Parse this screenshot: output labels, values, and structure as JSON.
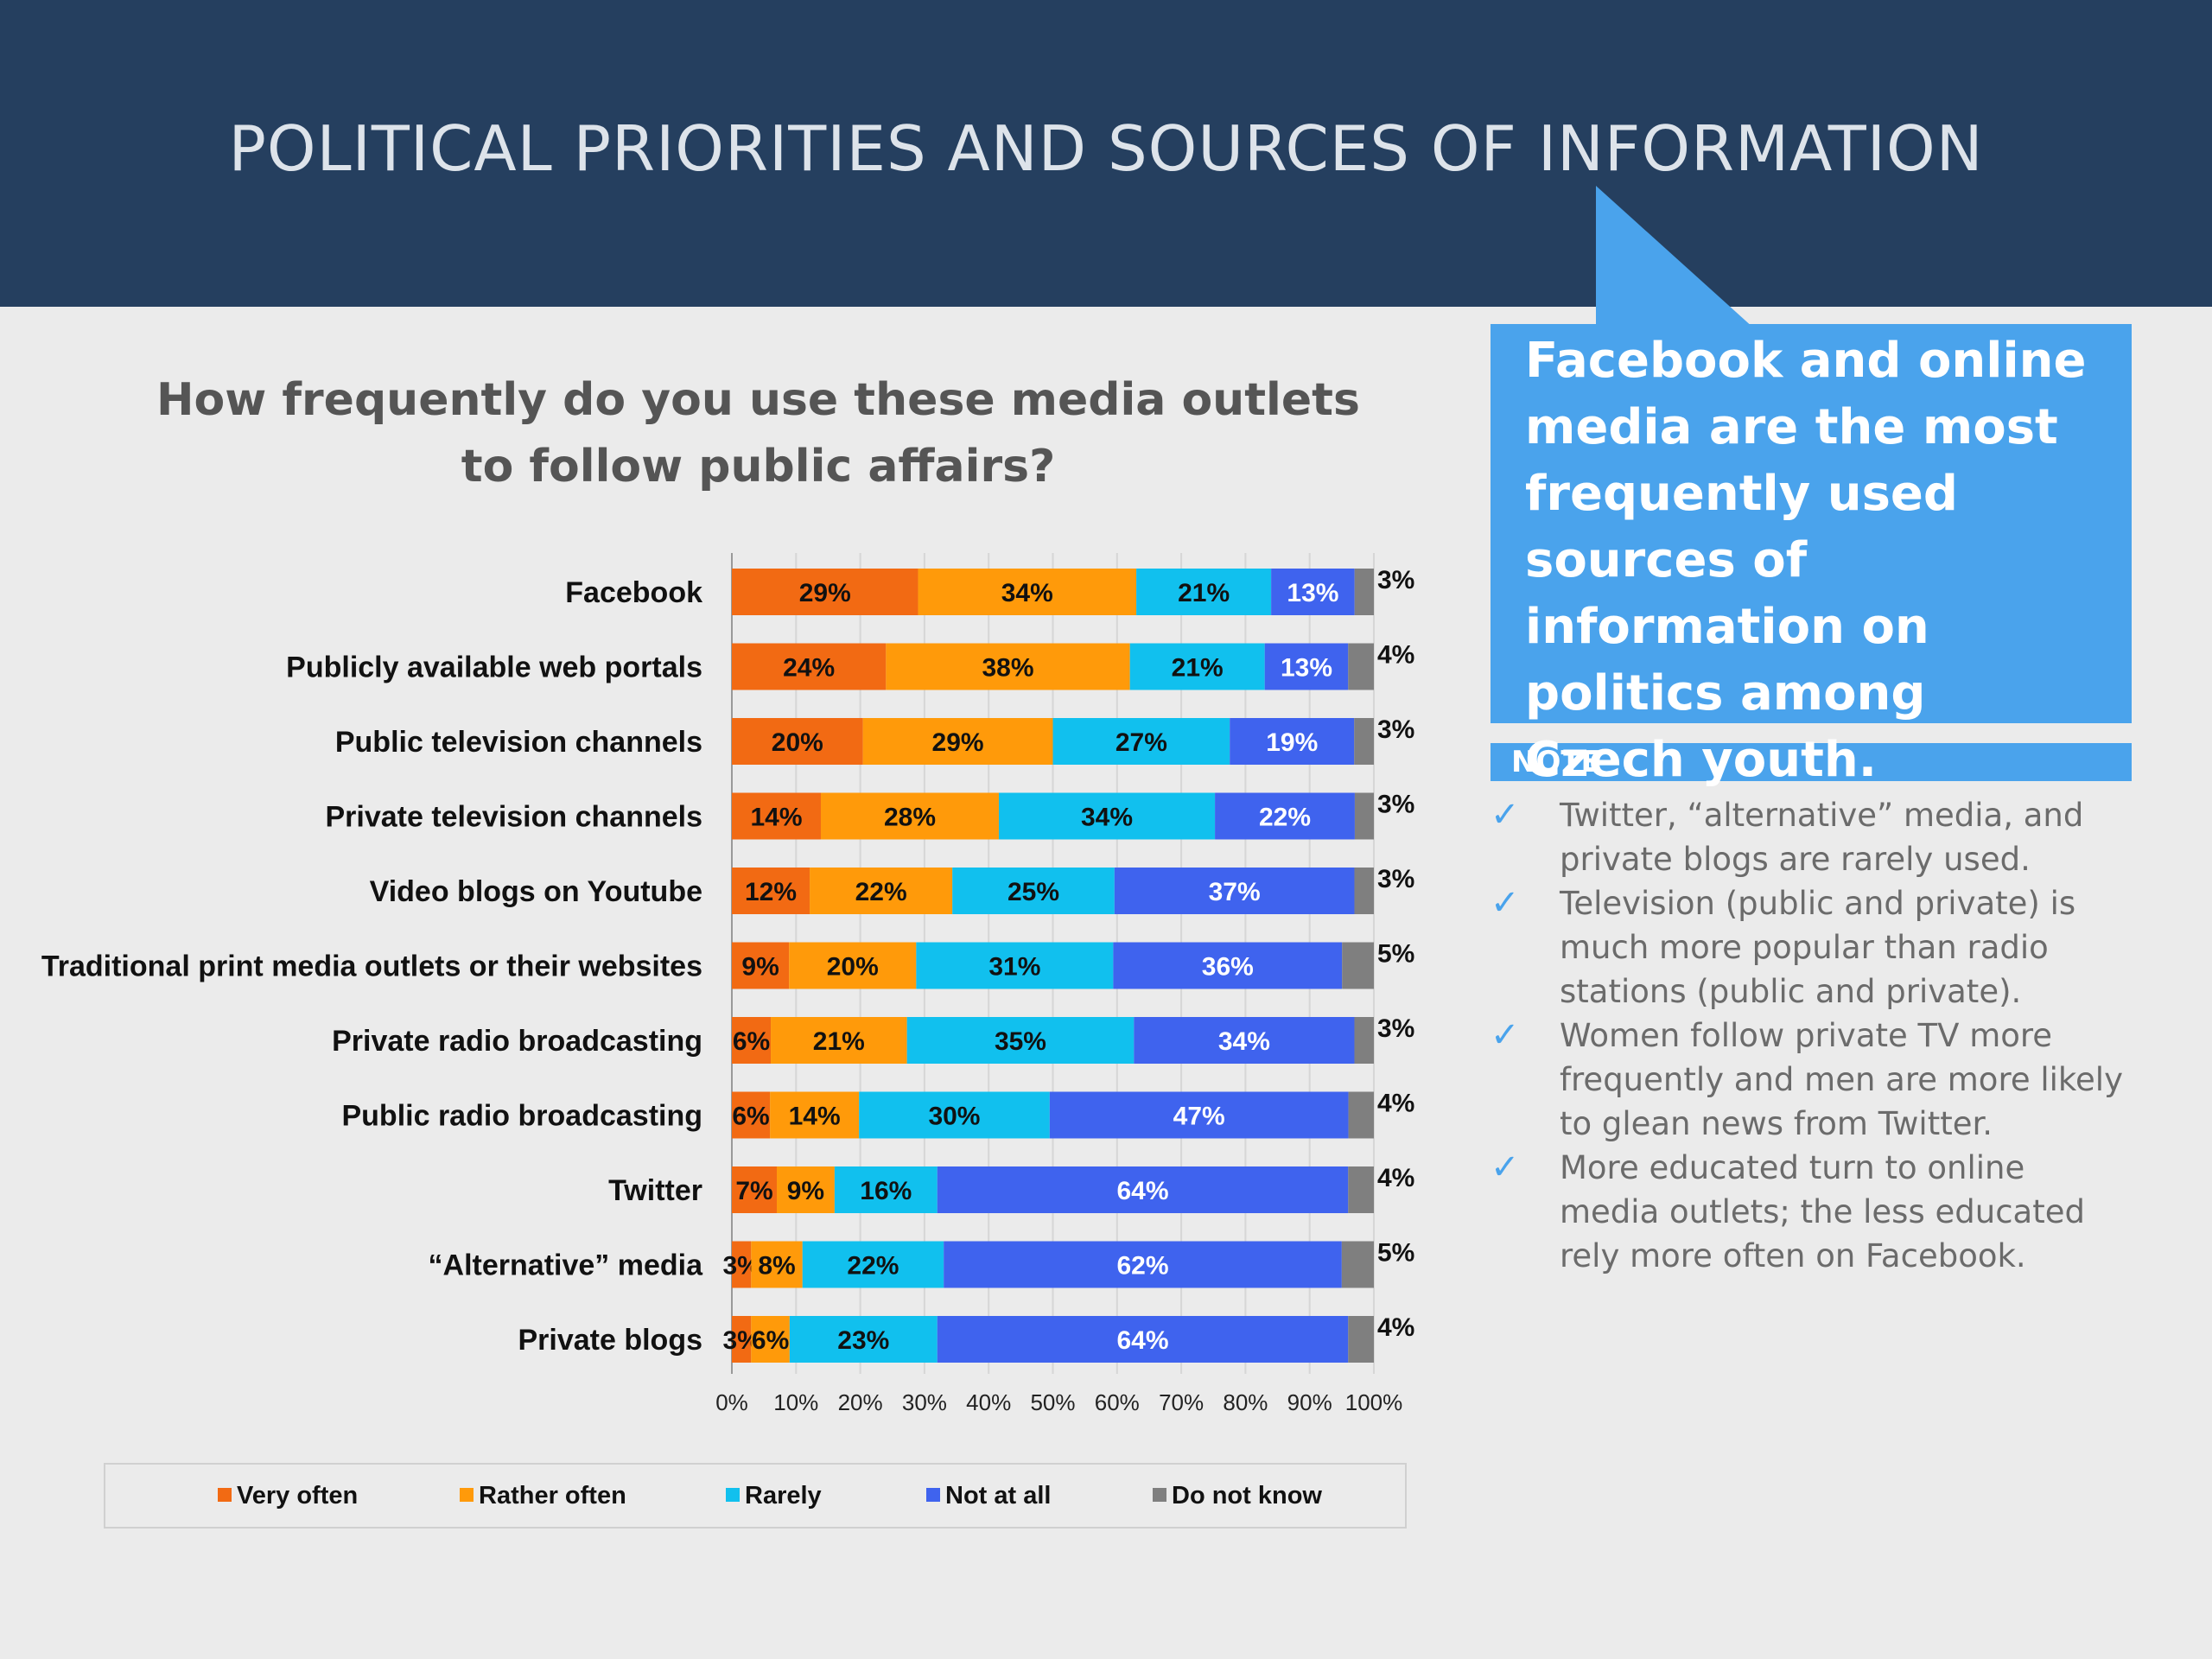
{
  "slide": {
    "title": "POLITICAL PRIORITIES AND SOURCES OF INFORMATION",
    "question": "How frequently do you use these media outlets to follow public affairs?"
  },
  "callout": {
    "text": "Facebook and online media are the most frequently used sources of information on politics among Czech youth."
  },
  "note": {
    "header": "NOTE",
    "items": [
      "Twitter, “alternative” media, and private blogs are rarely used.",
      "Television (public and private) is much more popular than radio stations (public and private).",
      "Women follow private TV more frequently and men are more likely to glean news from Twitter.",
      "More educated turn to online media outlets; the less educated rely more often on Facebook."
    ],
    "check_icon": "checkmark-icon"
  },
  "colors": {
    "header_bg": "#253f5f",
    "accent": "#4aa3ec",
    "very_often": "#f26a13",
    "rather_often": "#ff9a0a",
    "rarely": "#11c0ee",
    "not_at_all": "#3f63ee",
    "do_not_know": "#7f7f7f"
  },
  "chart_data": {
    "type": "bar",
    "orientation": "horizontal",
    "stacked": "100%",
    "categories": [
      "Facebook",
      "Publicly available web portals",
      "Public television channels",
      "Private television channels",
      "Video blogs on Youtube",
      "Traditional print media outlets or their websites",
      "Private radio broadcasting",
      "Public radio broadcasting",
      "Twitter",
      "“Alternative” media",
      "Private blogs"
    ],
    "series": [
      {
        "name": "Very often",
        "color": "#f26a13",
        "values": [
          29,
          24,
          20,
          14,
          12,
          9,
          6,
          6,
          7,
          3,
          3
        ]
      },
      {
        "name": "Rather often",
        "color": "#ff9a0a",
        "values": [
          34,
          38,
          29,
          28,
          22,
          20,
          21,
          14,
          9,
          8,
          6
        ]
      },
      {
        "name": "Rarely",
        "color": "#11c0ee",
        "values": [
          21,
          21,
          27,
          34,
          25,
          31,
          35,
          30,
          16,
          22,
          23
        ]
      },
      {
        "name": "Not at all",
        "color": "#3f63ee",
        "values": [
          13,
          13,
          19,
          22,
          37,
          36,
          34,
          47,
          64,
          62,
          64
        ]
      },
      {
        "name": "Do not know",
        "color": "#7f7f7f",
        "values": [
          3,
          4,
          3,
          3,
          3,
          5,
          3,
          4,
          4,
          5,
          4
        ]
      }
    ],
    "xticks": [
      "0%",
      "10%",
      "20%",
      "30%",
      "40%",
      "50%",
      "60%",
      "70%",
      "80%",
      "90%",
      "100%"
    ],
    "xlim": [
      0,
      100
    ],
    "value_suffix": "%",
    "legend_position": "bottom"
  }
}
